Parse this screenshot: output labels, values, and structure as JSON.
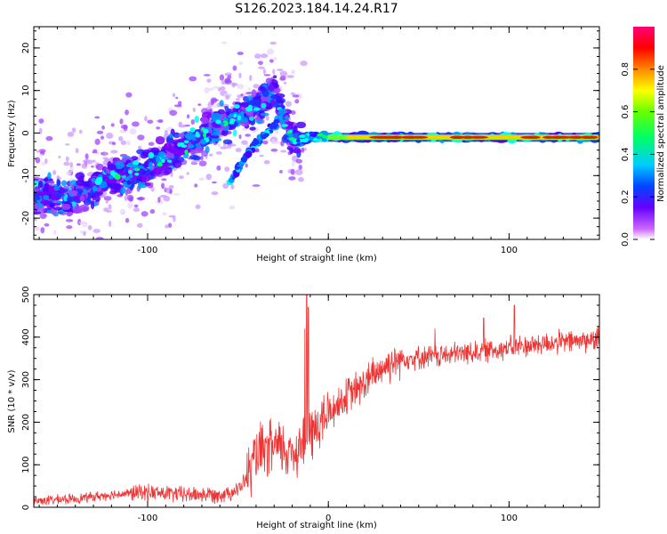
{
  "figure": {
    "title": "S126.2023.184.14.24.R17"
  },
  "chart_data": [
    {
      "type": "heatmap",
      "xlabel": "Height of straight line (km)",
      "ylabel": "Frequency (Hz)",
      "xlim": [
        -163,
        150
      ],
      "ylim": [
        -25,
        25
      ],
      "x_ticks": [
        -100,
        0,
        100
      ],
      "y_ticks": [
        -20,
        -10,
        0,
        10,
        20
      ],
      "colorbar": {
        "label": "Normalized spectral amplitude",
        "range": [
          0,
          1
        ],
        "ticks": [
          0.0,
          0.2,
          0.4,
          0.6,
          0.8
        ],
        "colormap": [
          "#ffffff",
          "#8b00ff",
          "#3300ff",
          "#0066ff",
          "#00ffff",
          "#00ff00",
          "#ffff00",
          "#ff8800",
          "#ff0000",
          "#ff00aa"
        ]
      },
      "ridge": [
        {
          "x": -160,
          "y": -15
        },
        {
          "x": -140,
          "y": -15
        },
        {
          "x": -120,
          "y": -10
        },
        {
          "x": -100,
          "y": -8
        },
        {
          "x": -80,
          "y": -3
        },
        {
          "x": -60,
          "y": 2
        },
        {
          "x": -40,
          "y": 6
        },
        {
          "x": -30,
          "y": 10
        },
        {
          "x": -25,
          "y": 4
        },
        {
          "x": -20,
          "y": -2
        },
        {
          "x": -10,
          "y": -1
        },
        {
          "x": 0,
          "y": -1
        },
        {
          "x": 50,
          "y": -1
        },
        {
          "x": 100,
          "y": -1
        },
        {
          "x": 150,
          "y": -1
        }
      ],
      "secondary_branch": [
        {
          "x": -55,
          "y": -12
        },
        {
          "x": -45,
          "y": -5
        },
        {
          "x": -35,
          "y": 0
        },
        {
          "x": -28,
          "y": 2
        }
      ]
    },
    {
      "type": "line",
      "xlabel": "Height of straight line (km)",
      "ylabel": "SNR (10 * v/v)",
      "xlim": [
        -163,
        150
      ],
      "ylim": [
        0,
        500
      ],
      "x_ticks": [
        -100,
        0,
        100
      ],
      "y_ticks": [
        0,
        100,
        200,
        300,
        400,
        500
      ],
      "color": "#ee3333",
      "series_shape": [
        {
          "x": -163,
          "y": 15
        },
        {
          "x": -140,
          "y": 20
        },
        {
          "x": -120,
          "y": 30
        },
        {
          "x": -100,
          "y": 35
        },
        {
          "x": -80,
          "y": 30
        },
        {
          "x": -60,
          "y": 30
        },
        {
          "x": -50,
          "y": 40
        },
        {
          "x": -45,
          "y": 70
        },
        {
          "x": -40,
          "y": 120
        },
        {
          "x": -30,
          "y": 140
        },
        {
          "x": -20,
          "y": 130
        },
        {
          "x": -10,
          "y": 170
        },
        {
          "x": 0,
          "y": 220
        },
        {
          "x": 10,
          "y": 260
        },
        {
          "x": 20,
          "y": 290
        },
        {
          "x": 30,
          "y": 330
        },
        {
          "x": 40,
          "y": 350
        },
        {
          "x": 60,
          "y": 355
        },
        {
          "x": 80,
          "y": 365
        },
        {
          "x": 100,
          "y": 375
        },
        {
          "x": 120,
          "y": 385
        },
        {
          "x": 150,
          "y": 395
        }
      ],
      "spikes": [
        {
          "x": -12,
          "y": 500
        },
        {
          "x": -11,
          "y": 470
        },
        {
          "x": -13,
          "y": 420
        },
        {
          "x": 103,
          "y": 475
        },
        {
          "x": 86,
          "y": 445
        },
        {
          "x": 59,
          "y": 420
        }
      ]
    }
  ]
}
